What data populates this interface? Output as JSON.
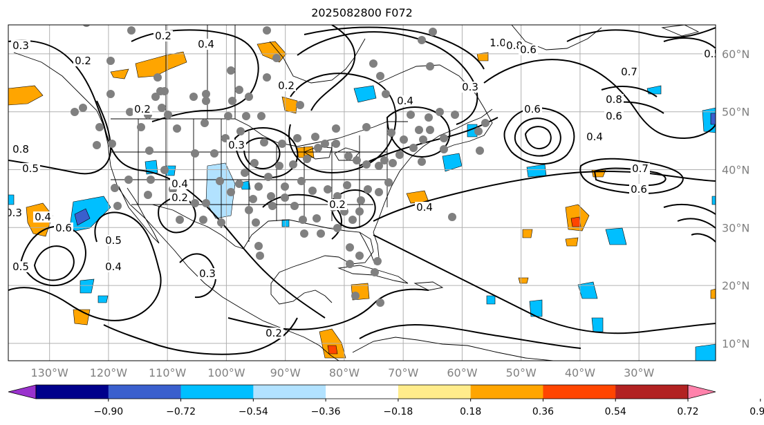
{
  "title": "2025082800 F072",
  "map": {
    "lon_range": [
      -137,
      -17
    ],
    "lat_range": [
      7,
      65
    ],
    "lon_labels": [
      "130°W",
      "120°W",
      "110°W",
      "100°W",
      "90°W",
      "80°W",
      "70°W",
      "60°W",
      "50°W",
      "40°W",
      "30°W"
    ],
    "lon_values": [
      -130,
      -120,
      -110,
      -100,
      -90,
      -80,
      -70,
      -60,
      -50,
      -40,
      -30
    ],
    "lat_labels": [
      "10°N",
      "20°N",
      "30°N",
      "40°N",
      "50°N",
      "60°N"
    ],
    "lat_values": [
      10,
      20,
      30,
      40,
      50,
      60
    ],
    "contour_labels": [
      "0.2",
      "0.4",
      "0.3",
      "0.5",
      "0.6",
      "0.8",
      "0.2",
      "0.3",
      "0.4",
      "0.5",
      "0.4",
      "0.2",
      "1.0",
      "0.8",
      "0.6",
      "0.4",
      "0.7",
      "0.8",
      "0.6",
      "0.7",
      "0.6",
      "0.4",
      "0.5",
      "0.3",
      "0.4",
      "0.2",
      "0.5",
      "0.6",
      "0.3",
      "0.2",
      "0.3",
      "0.4",
      "0.2",
      "0.2"
    ],
    "colors": {
      "grid": "#b0b0b0",
      "coast": "#000000",
      "contour": "#000000",
      "station": "#808080"
    }
  },
  "colorbar": {
    "ticks": [
      "−0.90",
      "−0.72",
      "−0.54",
      "−0.36",
      "−0.18",
      "0.18",
      "0.36",
      "0.54",
      "0.72",
      "0.90"
    ],
    "bins": [
      "#9a32cd",
      "#00008b",
      "#3a5fcd",
      "#00bfff",
      "#b2e2ff",
      "#ffffff",
      "#ffec8b",
      "#ffa500",
      "#ff4500",
      "#b22222",
      "#ff82ab"
    ],
    "under_color": "#9a32cd",
    "over_color": "#ff82ab"
  }
}
